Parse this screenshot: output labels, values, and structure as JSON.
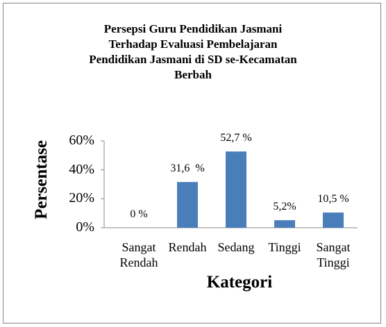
{
  "chart_data": {
    "type": "bar",
    "title": [
      "Persepsi Guru Pendidikan Jasmani",
      "Terhadap Evaluasi Pembelajaran",
      "Pendidikan Jasmani di SD se-Kecamatan",
      "Berbah"
    ],
    "x_label": "Kategori",
    "y_label": "Persentase",
    "categories": [
      "Sangat Rendah",
      "Rendah",
      "Sedang",
      "Tinggi",
      "Sangat Tinggi"
    ],
    "values": [
      0,
      31.6,
      52.7,
      5.2,
      10.5
    ],
    "value_labels": [
      "0 %",
      "31,6  %",
      "52,7 %",
      "5,2%",
      "10,5 %"
    ],
    "color": "#4a7ebb",
    "ylim": [
      0,
      60
    ],
    "yticks": [
      {
        "value": 0,
        "label": "0%"
      },
      {
        "value": 20,
        "label": "20%"
      },
      {
        "value": 40,
        "label": "40%"
      },
      {
        "value": 60,
        "label": "60%"
      }
    ],
    "grid": false
  }
}
